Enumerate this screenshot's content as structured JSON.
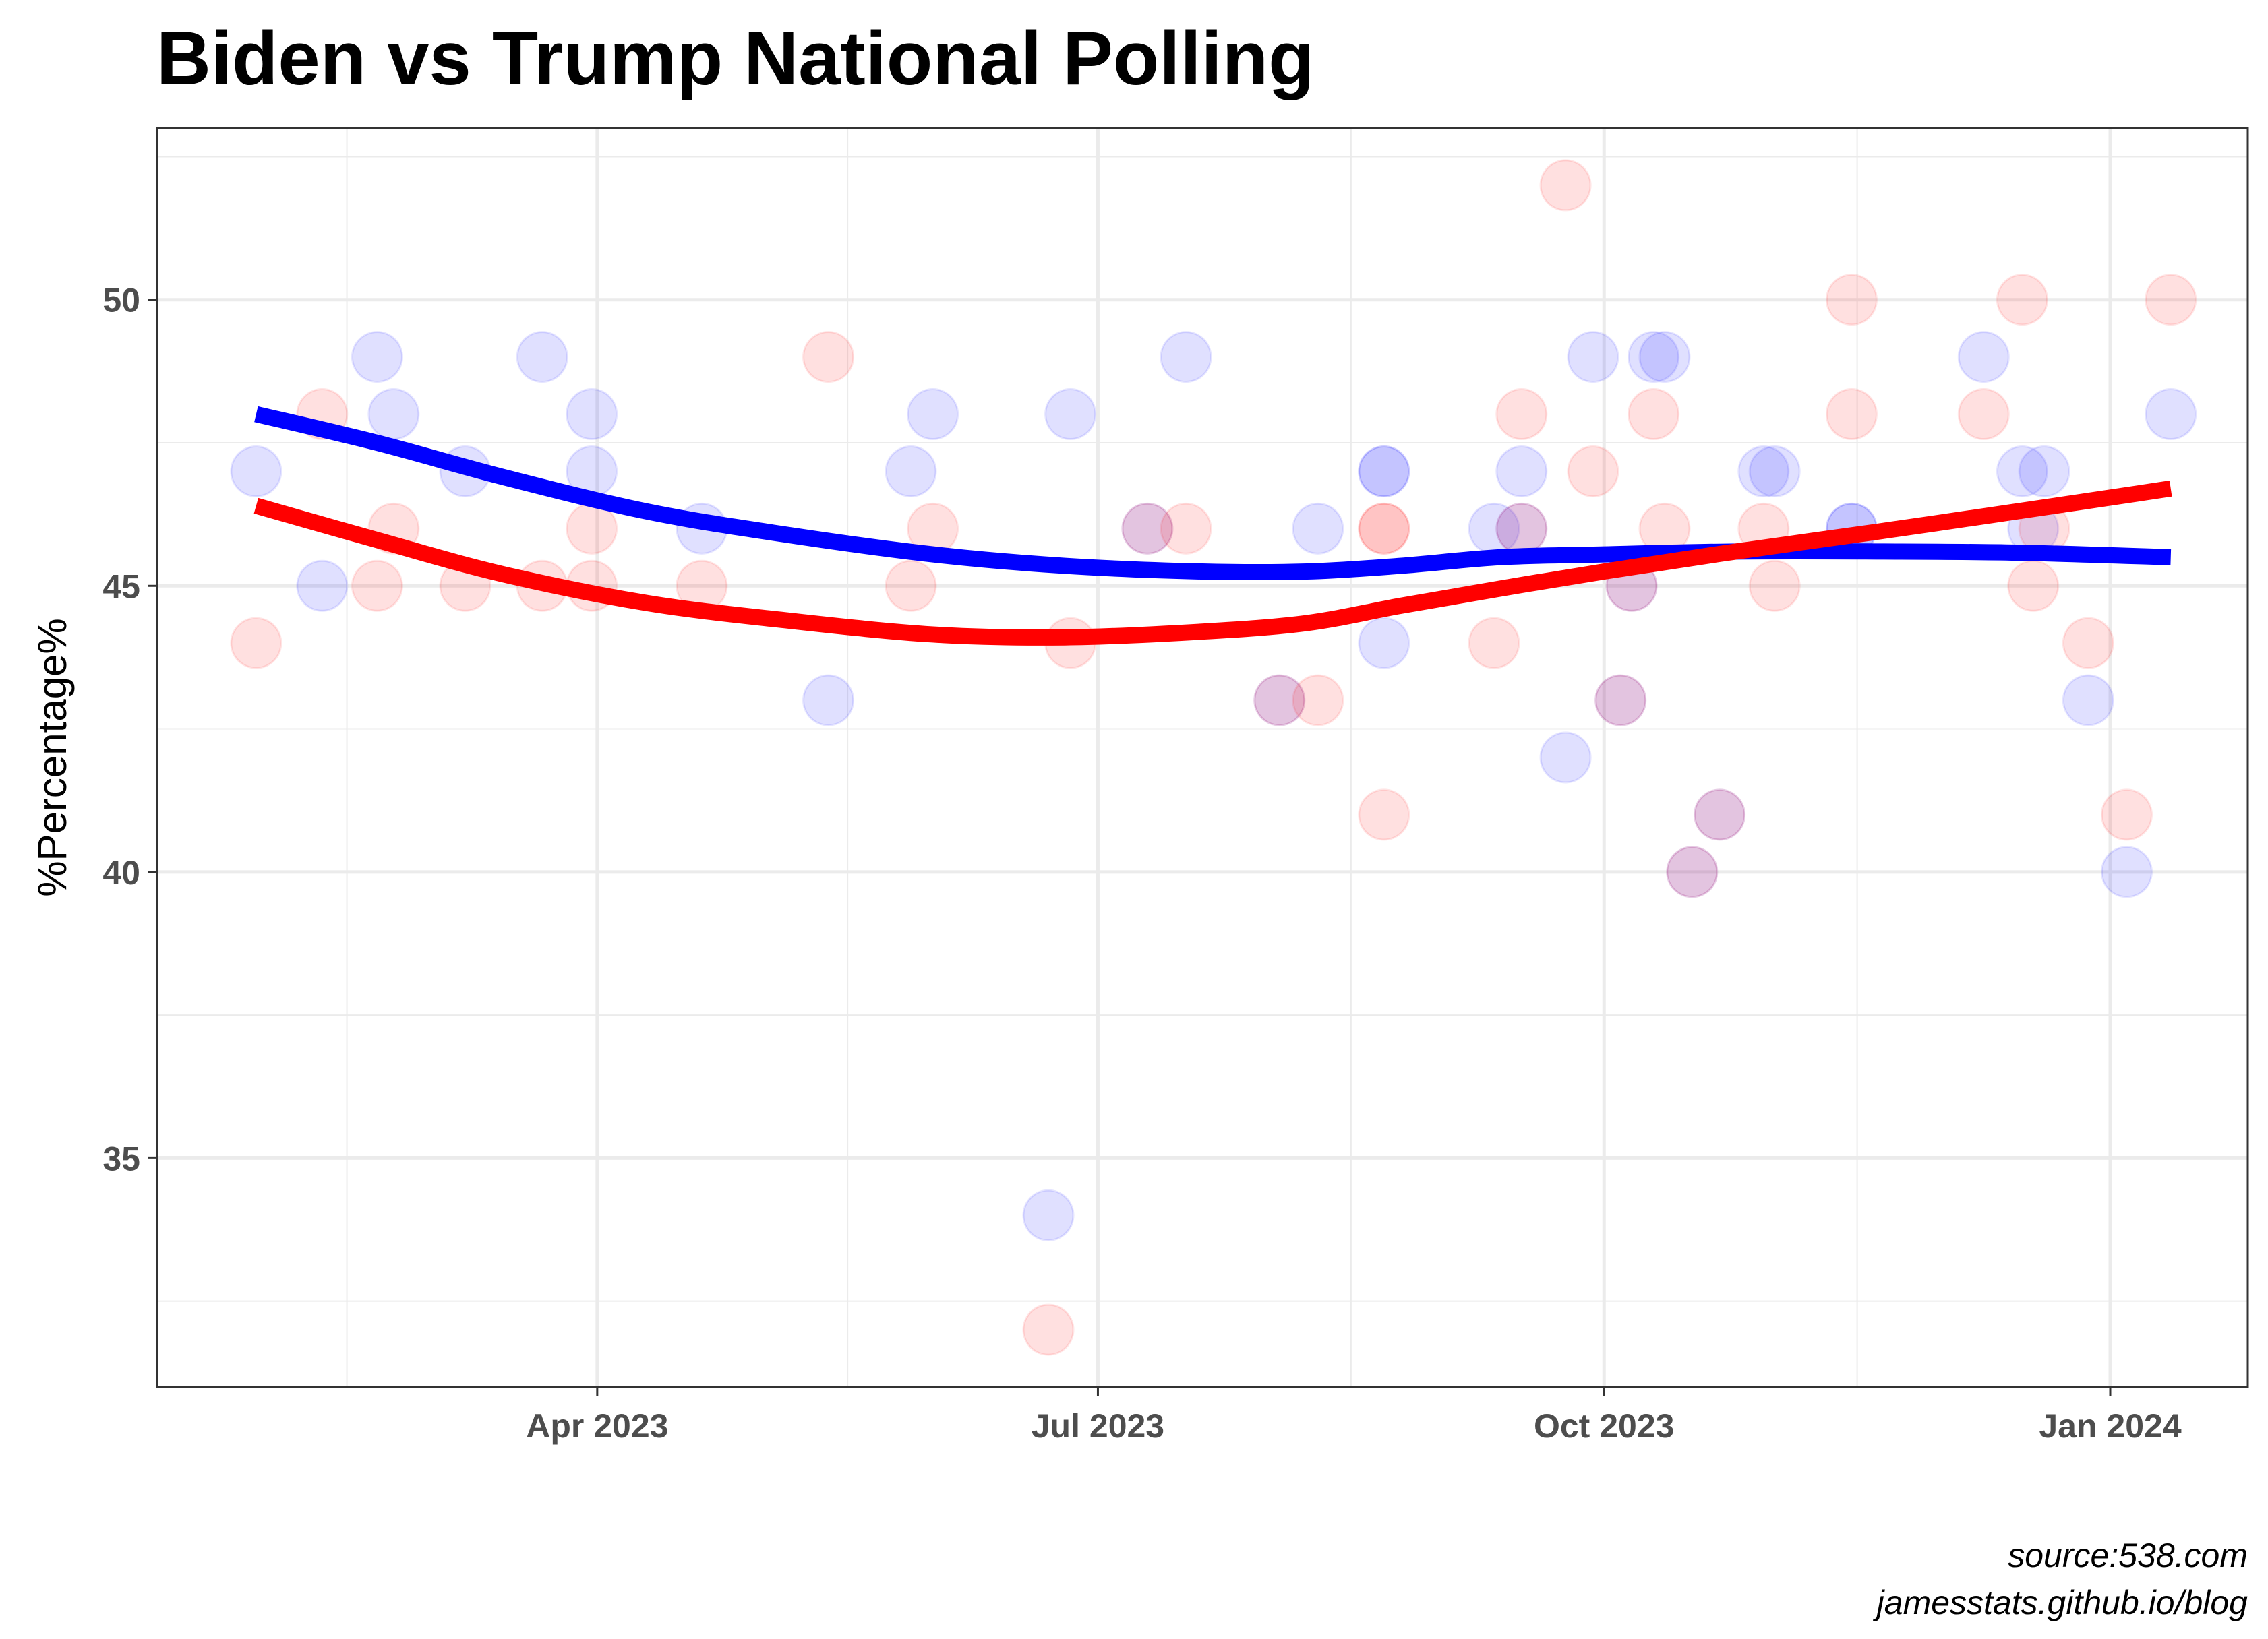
{
  "chart_data": {
    "type": "scatter",
    "title": "Biden vs Trump National Polling",
    "xlabel": "",
    "ylabel": "%Percentage%",
    "caption": [
      "source:538.com",
      "jamesstats.github.io/blog"
    ],
    "xlim": [
      "2023-01-11",
      "2024-01-26"
    ],
    "ylim": [
      31,
      53
    ],
    "x_ticks": [
      {
        "date": "2023-04-01",
        "label": "Apr 2023"
      },
      {
        "date": "2023-07-01",
        "label": "Jul 2023"
      },
      {
        "date": "2023-10-01",
        "label": "Oct 2023"
      },
      {
        "date": "2024-01-01",
        "label": "Jan 2024"
      }
    ],
    "y_ticks": [
      35,
      40,
      45,
      50
    ],
    "grid": true,
    "legend": "none",
    "series": [
      {
        "color": "#0000ff",
        "points": [
          [
            "2023-01-29",
            47
          ],
          [
            "2023-02-10",
            45
          ],
          [
            "2023-02-20",
            49
          ],
          [
            "2023-02-23",
            48
          ],
          [
            "2023-03-08",
            47
          ],
          [
            "2023-03-22",
            49
          ],
          [
            "2023-03-31",
            48
          ],
          [
            "2023-03-31",
            47
          ],
          [
            "2023-04-20",
            46
          ],
          [
            "2023-05-13",
            43
          ],
          [
            "2023-05-28",
            47
          ],
          [
            "2023-06-01",
            48
          ],
          [
            "2023-06-22",
            34
          ],
          [
            "2023-06-26",
            48
          ],
          [
            "2023-07-10",
            46
          ],
          [
            "2023-07-17",
            49
          ],
          [
            "2023-08-03",
            43
          ],
          [
            "2023-08-10",
            46
          ],
          [
            "2023-08-22",
            47
          ],
          [
            "2023-08-22",
            44
          ],
          [
            "2023-08-22",
            47
          ],
          [
            "2023-09-11",
            46
          ],
          [
            "2023-09-16",
            47
          ],
          [
            "2023-09-16",
            46
          ],
          [
            "2023-09-24",
            42
          ],
          [
            "2023-09-29",
            49
          ],
          [
            "2023-10-04",
            43
          ],
          [
            "2023-10-06",
            45
          ],
          [
            "2023-10-10",
            49
          ],
          [
            "2023-10-12",
            49
          ],
          [
            "2023-10-17",
            40
          ],
          [
            "2023-10-22",
            41
          ],
          [
            "2023-10-30",
            47
          ],
          [
            "2023-11-01",
            47
          ],
          [
            "2023-11-15",
            46
          ],
          [
            "2023-11-15",
            46
          ],
          [
            "2023-12-09",
            49
          ],
          [
            "2023-12-16",
            47
          ],
          [
            "2023-12-18",
            46
          ],
          [
            "2023-12-20",
            47
          ],
          [
            "2023-12-28",
            43
          ],
          [
            "2024-01-04",
            40
          ],
          [
            "2024-01-12",
            48
          ]
        ],
        "trend": [
          [
            "2023-01-29",
            48.0
          ],
          [
            "2023-02-20",
            47.5
          ],
          [
            "2023-03-15",
            46.9
          ],
          [
            "2023-04-10",
            46.3
          ],
          [
            "2023-05-05",
            45.9
          ],
          [
            "2023-06-01",
            45.55
          ],
          [
            "2023-06-25",
            45.35
          ],
          [
            "2023-07-20",
            45.25
          ],
          [
            "2023-08-08",
            45.25
          ],
          [
            "2023-08-25",
            45.35
          ],
          [
            "2023-09-12",
            45.5
          ],
          [
            "2023-10-01",
            45.55
          ],
          [
            "2023-10-25",
            45.6
          ],
          [
            "2023-11-20",
            45.6
          ],
          [
            "2023-12-15",
            45.58
          ],
          [
            "2024-01-12",
            45.5
          ]
        ]
      },
      {
        "color": "#ff0000",
        "points": [
          [
            "2023-01-29",
            44
          ],
          [
            "2023-02-10",
            48
          ],
          [
            "2023-02-20",
            45
          ],
          [
            "2023-02-23",
            46
          ],
          [
            "2023-03-08",
            45
          ],
          [
            "2023-03-22",
            45
          ],
          [
            "2023-03-31",
            46
          ],
          [
            "2023-03-31",
            45
          ],
          [
            "2023-04-20",
            45
          ],
          [
            "2023-05-13",
            49
          ],
          [
            "2023-05-28",
            45
          ],
          [
            "2023-06-01",
            46
          ],
          [
            "2023-06-22",
            32
          ],
          [
            "2023-06-26",
            44
          ],
          [
            "2023-07-10",
            46
          ],
          [
            "2023-07-17",
            46
          ],
          [
            "2023-08-03",
            43
          ],
          [
            "2023-08-10",
            43
          ],
          [
            "2023-08-22",
            46
          ],
          [
            "2023-08-22",
            41
          ],
          [
            "2023-08-22",
            46
          ],
          [
            "2023-09-11",
            44
          ],
          [
            "2023-09-16",
            48
          ],
          [
            "2023-09-16",
            46
          ],
          [
            "2023-09-24",
            52
          ],
          [
            "2023-09-29",
            47
          ],
          [
            "2023-10-04",
            43
          ],
          [
            "2023-10-06",
            45
          ],
          [
            "2023-10-10",
            48
          ],
          [
            "2023-10-12",
            46
          ],
          [
            "2023-10-17",
            40
          ],
          [
            "2023-10-22",
            41
          ],
          [
            "2023-10-30",
            46
          ],
          [
            "2023-11-01",
            45
          ],
          [
            "2023-11-15",
            50
          ],
          [
            "2023-11-15",
            48
          ],
          [
            "2023-12-09",
            48
          ],
          [
            "2023-12-16",
            50
          ],
          [
            "2023-12-18",
            45
          ],
          [
            "2023-12-20",
            46
          ],
          [
            "2023-12-28",
            44
          ],
          [
            "2024-01-04",
            41
          ],
          [
            "2024-01-12",
            50
          ]
        ],
        "trend": [
          [
            "2023-01-29",
            46.4
          ],
          [
            "2023-02-20",
            45.8
          ],
          [
            "2023-03-15",
            45.2
          ],
          [
            "2023-04-10",
            44.7
          ],
          [
            "2023-05-05",
            44.4
          ],
          [
            "2023-06-01",
            44.15
          ],
          [
            "2023-06-25",
            44.1
          ],
          [
            "2023-07-20",
            44.2
          ],
          [
            "2023-08-08",
            44.35
          ],
          [
            "2023-08-25",
            44.65
          ],
          [
            "2023-09-12",
            44.95
          ],
          [
            "2023-10-01",
            45.25
          ],
          [
            "2023-10-25",
            45.6
          ],
          [
            "2023-11-20",
            45.95
          ],
          [
            "2023-12-15",
            46.3
          ],
          [
            "2024-01-12",
            46.7
          ]
        ]
      }
    ]
  }
}
